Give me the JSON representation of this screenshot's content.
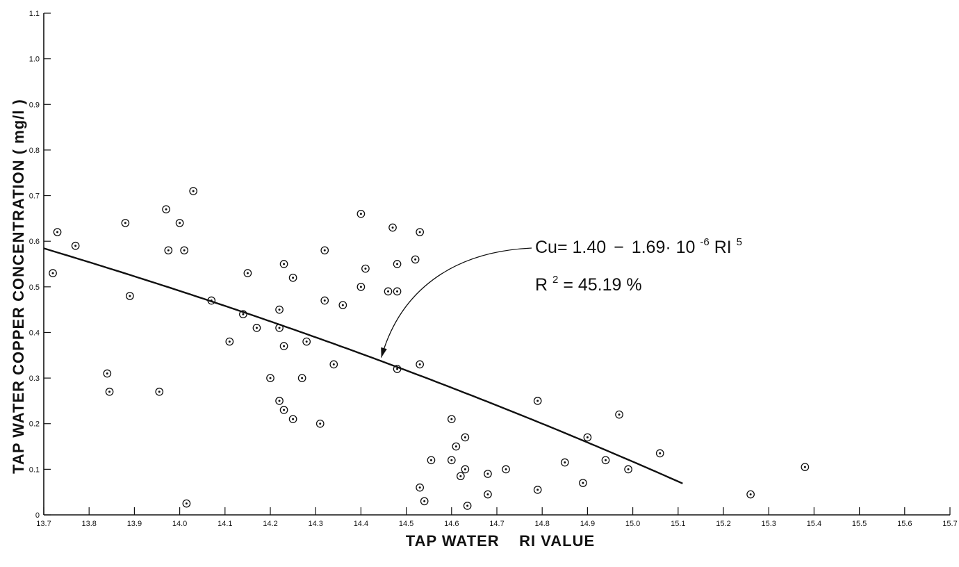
{
  "chart_data": {
    "type": "scatter",
    "title": "",
    "xlabel": "TAP WATER    RI VALUE",
    "ylabel": "TAP WATER COPPER CONCENTRATION ( mg/l )",
    "xlim": [
      13.7,
      15.7
    ],
    "ylim": [
      0,
      1.1
    ],
    "x_ticks": [
      "13.7",
      "13.8",
      "13.9",
      "14.0",
      "14.1",
      "14.2",
      "14.3",
      "14.4",
      "14.5",
      "14.6",
      "14.7",
      "14.8",
      "14.9",
      "15.0",
      "15.1",
      "15.2",
      "15.3",
      "15.4",
      "15.5",
      "15.6",
      "15.7"
    ],
    "y_ticks": [
      "0",
      "0.1",
      "0.2",
      "0.3",
      "0.4",
      "0.5",
      "0.6",
      "0.7",
      "0.8",
      "0.9",
      "1.0",
      "1.1"
    ],
    "grid": false,
    "points": [
      {
        "x": 13.72,
        "y": 0.53
      },
      {
        "x": 13.73,
        "y": 0.62
      },
      {
        "x": 13.77,
        "y": 0.59
      },
      {
        "x": 13.84,
        "y": 0.31
      },
      {
        "x": 13.845,
        "y": 0.27
      },
      {
        "x": 13.88,
        "y": 0.64
      },
      {
        "x": 13.89,
        "y": 0.48
      },
      {
        "x": 13.955,
        "y": 0.27
      },
      {
        "x": 13.97,
        "y": 0.67
      },
      {
        "x": 13.975,
        "y": 0.58
      },
      {
        "x": 14.0,
        "y": 0.64
      },
      {
        "x": 14.01,
        "y": 0.58
      },
      {
        "x": 14.015,
        "y": 0.025
      },
      {
        "x": 14.03,
        "y": 0.71
      },
      {
        "x": 14.07,
        "y": 0.47
      },
      {
        "x": 14.11,
        "y": 0.38
      },
      {
        "x": 14.14,
        "y": 0.44
      },
      {
        "x": 14.15,
        "y": 0.53
      },
      {
        "x": 14.17,
        "y": 0.41
      },
      {
        "x": 14.2,
        "y": 0.3
      },
      {
        "x": 14.22,
        "y": 0.45
      },
      {
        "x": 14.22,
        "y": 0.41
      },
      {
        "x": 14.22,
        "y": 0.25
      },
      {
        "x": 14.23,
        "y": 0.55
      },
      {
        "x": 14.23,
        "y": 0.37
      },
      {
        "x": 14.23,
        "y": 0.23
      },
      {
        "x": 14.25,
        "y": 0.52
      },
      {
        "x": 14.25,
        "y": 0.21
      },
      {
        "x": 14.27,
        "y": 0.3
      },
      {
        "x": 14.28,
        "y": 0.38
      },
      {
        "x": 14.31,
        "y": 0.2
      },
      {
        "x": 14.32,
        "y": 0.58
      },
      {
        "x": 14.32,
        "y": 0.47
      },
      {
        "x": 14.34,
        "y": 0.33
      },
      {
        "x": 14.36,
        "y": 0.46
      },
      {
        "x": 14.4,
        "y": 0.66
      },
      {
        "x": 14.4,
        "y": 0.5
      },
      {
        "x": 14.41,
        "y": 0.54
      },
      {
        "x": 14.46,
        "y": 0.49
      },
      {
        "x": 14.47,
        "y": 0.63
      },
      {
        "x": 14.48,
        "y": 0.55
      },
      {
        "x": 14.48,
        "y": 0.49
      },
      {
        "x": 14.48,
        "y": 0.32
      },
      {
        "x": 14.52,
        "y": 0.56
      },
      {
        "x": 14.53,
        "y": 0.62
      },
      {
        "x": 14.53,
        "y": 0.33
      },
      {
        "x": 14.53,
        "y": 0.06
      },
      {
        "x": 14.54,
        "y": 0.03
      },
      {
        "x": 14.555,
        "y": 0.12
      },
      {
        "x": 14.6,
        "y": 0.21
      },
      {
        "x": 14.6,
        "y": 0.12
      },
      {
        "x": 14.61,
        "y": 0.15
      },
      {
        "x": 14.62,
        "y": 0.085
      },
      {
        "x": 14.63,
        "y": 0.17
      },
      {
        "x": 14.63,
        "y": 0.1
      },
      {
        "x": 14.635,
        "y": 0.02
      },
      {
        "x": 14.68,
        "y": 0.09
      },
      {
        "x": 14.68,
        "y": 0.045
      },
      {
        "x": 14.72,
        "y": 0.1
      },
      {
        "x": 14.79,
        "y": 0.25
      },
      {
        "x": 14.79,
        "y": 0.055
      },
      {
        "x": 14.85,
        "y": 0.115
      },
      {
        "x": 14.89,
        "y": 0.07
      },
      {
        "x": 14.9,
        "y": 0.17
      },
      {
        "x": 14.94,
        "y": 0.12
      },
      {
        "x": 14.97,
        "y": 0.22
      },
      {
        "x": 14.99,
        "y": 0.1
      },
      {
        "x": 15.06,
        "y": 0.135
      },
      {
        "x": 15.26,
        "y": 0.045
      },
      {
        "x": 15.38,
        "y": 0.105
      }
    ],
    "fit": {
      "x_range": [
        13.7,
        15.11
      ],
      "intercept": 1.4,
      "coefficient": 1.69e-06,
      "power": 5
    },
    "annotation": {
      "equation_parts": {
        "lhs": "Cu= 1.40",
        "minus": "−",
        "coef": "1.69· 10",
        "exp": "-6",
        "var": " RI",
        "power": "5"
      },
      "r2_parts": {
        "r": "R",
        "sq": "2",
        "val": "= 45.19 %"
      },
      "arrow_target": {
        "x": 14.445,
        "y": 0.345
      }
    }
  }
}
